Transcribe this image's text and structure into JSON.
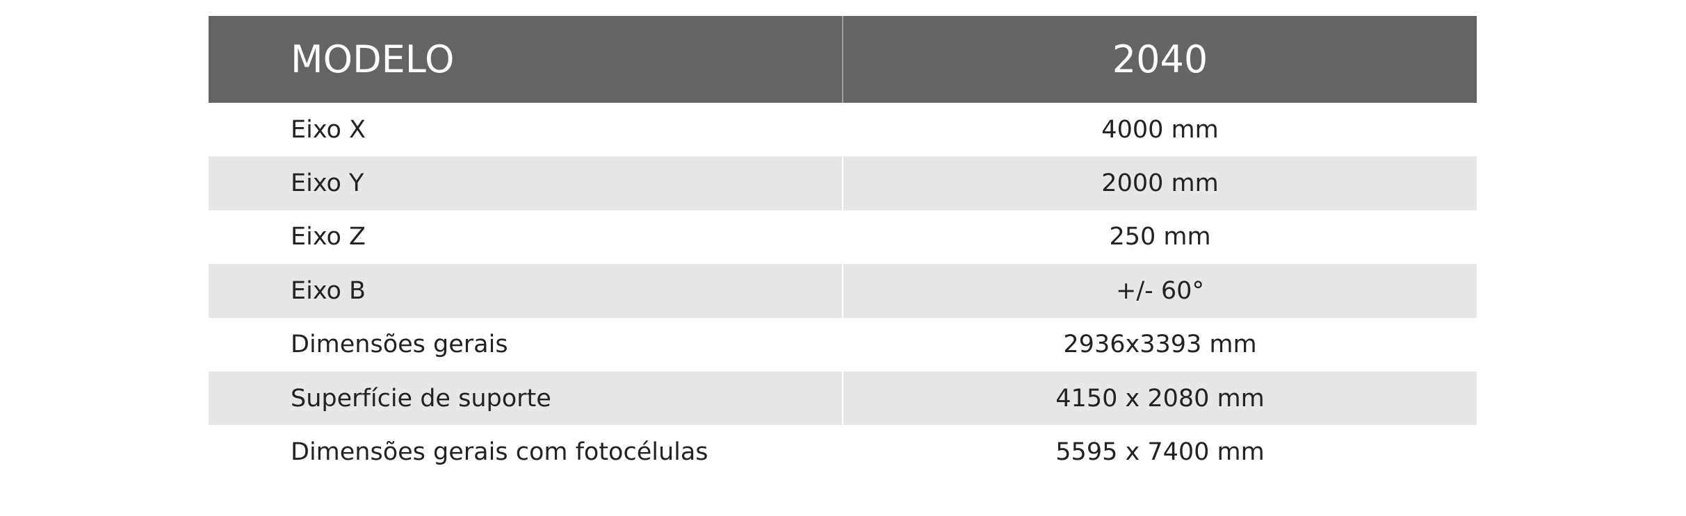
{
  "table": {
    "header": [
      "MODELO",
      "2040"
    ],
    "rows": [
      [
        "Eixo X",
        "4000 mm"
      ],
      [
        "Eixo Y",
        "2000 mm"
      ],
      [
        "Eixo Z",
        "250 mm"
      ],
      [
        "Eixo B",
        "+/- 60°"
      ],
      [
        "Dimensões gerais",
        "2936x3393 mm"
      ],
      [
        "Superfície de suporte",
        "4150 x 2080 mm"
      ],
      [
        "Dimensões gerais com fotocélulas",
        "5595 x 7400 mm"
      ]
    ]
  }
}
